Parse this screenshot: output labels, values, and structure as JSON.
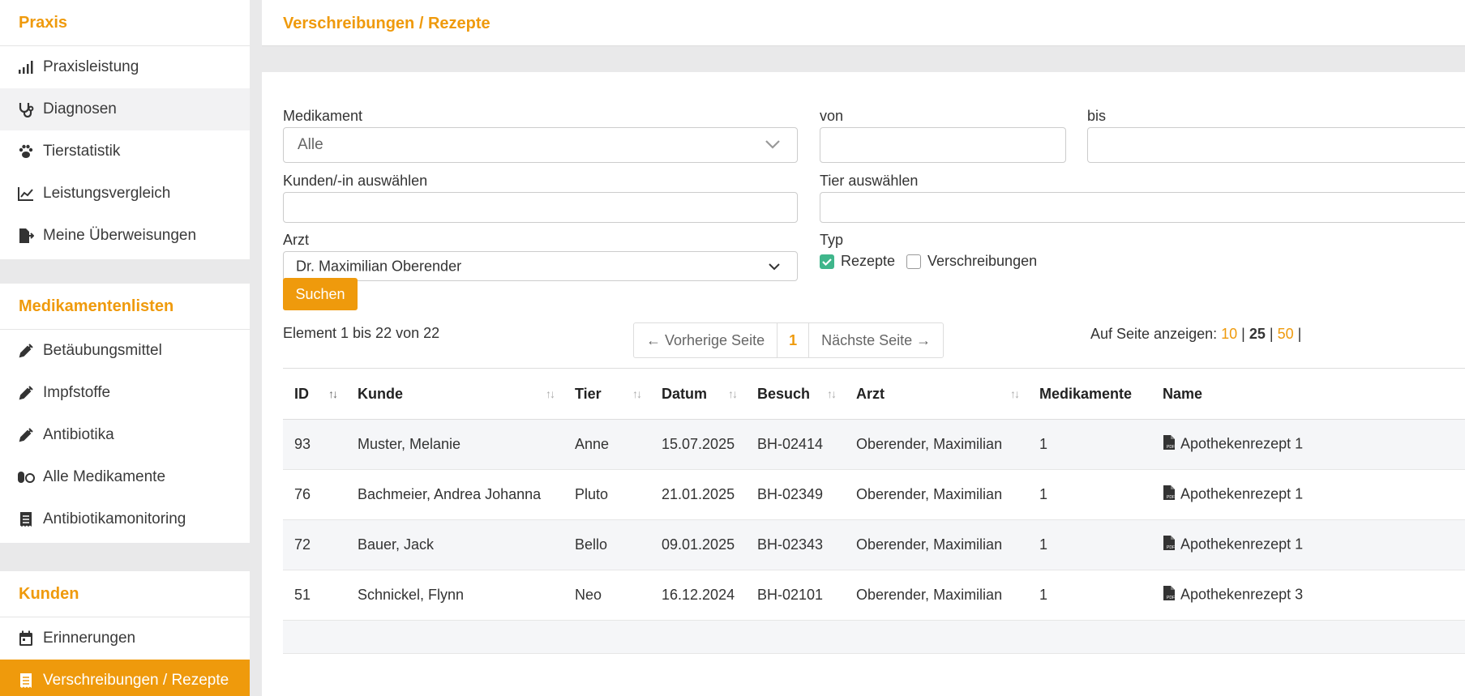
{
  "sidebar": {
    "sections": [
      {
        "title": "Praxis",
        "items": [
          {
            "label": "Praxisleistung",
            "icon": "signal-bars-icon"
          },
          {
            "label": "Diagnosen",
            "icon": "stethoscope-icon"
          },
          {
            "label": "Tierstatistik",
            "icon": "paw-icon"
          },
          {
            "label": "Leistungsvergleich",
            "icon": "line-chart-icon"
          },
          {
            "label": "Meine Überweisungen",
            "icon": "file-export-icon"
          }
        ]
      },
      {
        "title": "Medikamentenlisten",
        "items": [
          {
            "label": "Betäubungsmittel",
            "icon": "syringe-icon"
          },
          {
            "label": "Impfstoffe",
            "icon": "syringe-icon"
          },
          {
            "label": "Antibiotika",
            "icon": "syringe-icon"
          },
          {
            "label": "Alle Medikamente",
            "icon": "pills-icon"
          },
          {
            "label": "Antibiotikamonitoring",
            "icon": "receipt-icon"
          }
        ]
      },
      {
        "title": "Kunden",
        "items": [
          {
            "label": "Erinnerungen",
            "icon": "calendar-icon"
          },
          {
            "label": "Verschreibungen / Rezepte",
            "icon": "receipt-icon"
          }
        ]
      }
    ]
  },
  "page": {
    "title": "Verschreibungen / Rezepte"
  },
  "filters": {
    "medikament_label": "Medikament",
    "medikament_value": "Alle",
    "von_label": "von",
    "bis_label": "bis",
    "kunde_label": "Kunden/-in auswählen",
    "tier_label": "Tier auswählen",
    "arzt_label": "Arzt",
    "arzt_value": "Dr. Maximilian Oberender",
    "typ_label": "Typ",
    "typ_options": [
      {
        "label": "Rezepte",
        "checked": true
      },
      {
        "label": "Verschreibungen",
        "checked": false
      }
    ],
    "search_button": "Suchen"
  },
  "results": {
    "summary": "Element 1 bis 22 von 22",
    "pager": {
      "prev": "← Vorherige Seite",
      "current": "1",
      "next": "Nächste Seite →"
    },
    "per_page_label": "Auf Seite anzeigen:",
    "per_page_options": [
      "10",
      "25",
      "50"
    ],
    "per_page_selected": "25"
  },
  "table": {
    "columns": [
      "ID",
      "Kunde",
      "Tier",
      "Datum",
      "Besuch",
      "Arzt",
      "Medikamente",
      "Name"
    ],
    "rows": [
      {
        "id": "93",
        "kunde": "Muster, Melanie",
        "tier": "Anne",
        "datum": "15.07.2025",
        "besuch": "BH-02414",
        "arzt": "Oberender, Maximilian",
        "medikamente": "1",
        "name": "Apothekenrezept 1"
      },
      {
        "id": "76",
        "kunde": "Bachmeier, Andrea Johanna",
        "tier": "Pluto",
        "datum": "21.01.2025",
        "besuch": "BH-02349",
        "arzt": "Oberender, Maximilian",
        "medikamente": "1",
        "name": "Apothekenrezept 1"
      },
      {
        "id": "72",
        "kunde": "Bauer, Jack",
        "tier": "Bello",
        "datum": "09.01.2025",
        "besuch": "BH-02343",
        "arzt": "Oberender, Maximilian",
        "medikamente": "1",
        "name": "Apothekenrezept 1"
      },
      {
        "id": "51",
        "kunde": "Schnickel, Flynn",
        "tier": "Neo",
        "datum": "16.12.2024",
        "besuch": "BH-02101",
        "arzt": "Oberender, Maximilian",
        "medikamente": "1",
        "name": "Apothekenrezept 3"
      }
    ]
  },
  "colors": {
    "accent": "#ef9a0c",
    "checkbox_checked": "#3fb68b"
  }
}
